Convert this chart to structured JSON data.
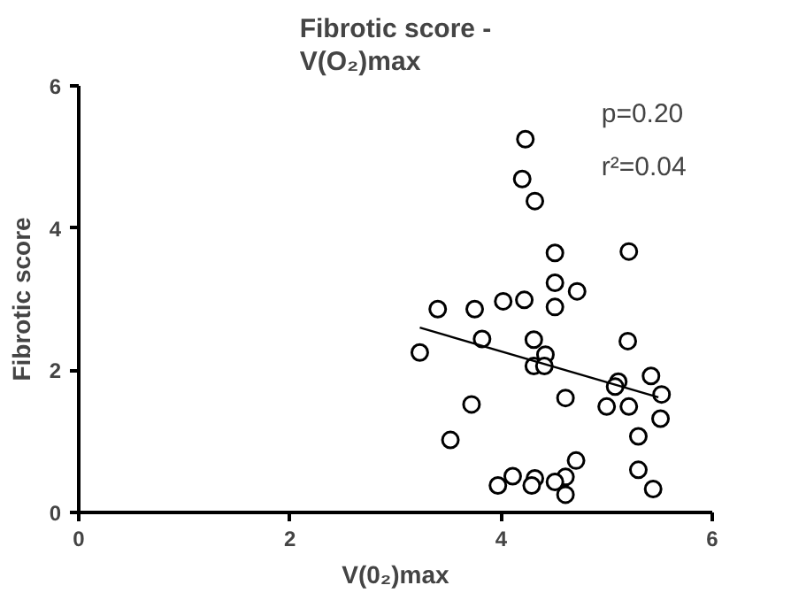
{
  "chart_data": {
    "type": "scatter",
    "title": "Fibrotic score -\nV(O₂)max",
    "xlabel": "V(0₂)max",
    "ylabel": "Fibrotic score",
    "xlim": [
      0,
      6
    ],
    "ylim": [
      0,
      6
    ],
    "xticks": [
      0,
      2,
      4,
      6
    ],
    "yticks": [
      0,
      2,
      4,
      6
    ],
    "grid": false,
    "series": [
      {
        "color": "#000000",
        "marker": "circle",
        "x": [
          4.23,
          4.2,
          4.32,
          4.51,
          5.21,
          4.51,
          4.51,
          4.72,
          4.02,
          4.22,
          3.4,
          3.75,
          3.82,
          3.23,
          4.31,
          4.42,
          4.31,
          4.41,
          5.2,
          5.11,
          5.08,
          5.0,
          5.21,
          5.42,
          5.52,
          5.51,
          5.3,
          4.61,
          3.72,
          3.52,
          5.3,
          5.44,
          4.71,
          4.61,
          4.61,
          4.51,
          4.32,
          4.29,
          4.11,
          3.97
        ],
        "values": [
          5.25,
          4.69,
          4.38,
          3.65,
          3.67,
          3.23,
          2.89,
          3.11,
          2.97,
          2.99,
          2.86,
          2.86,
          2.44,
          2.25,
          2.43,
          2.22,
          2.06,
          2.06,
          2.41,
          1.84,
          1.77,
          1.49,
          1.49,
          1.92,
          1.66,
          1.32,
          1.07,
          1.61,
          1.52,
          1.02,
          0.6,
          0.33,
          0.73,
          0.5,
          0.25,
          0.43,
          0.48,
          0.38,
          0.51,
          0.38
        ]
      },
      {
        "type": "line",
        "marker": "none",
        "color": "#000000",
        "x": [
          3.23,
          5.49
        ],
        "values": [
          2.6,
          1.62
        ]
      }
    ],
    "annotations": [
      "p=0.20",
      "r²=0.04"
    ]
  }
}
